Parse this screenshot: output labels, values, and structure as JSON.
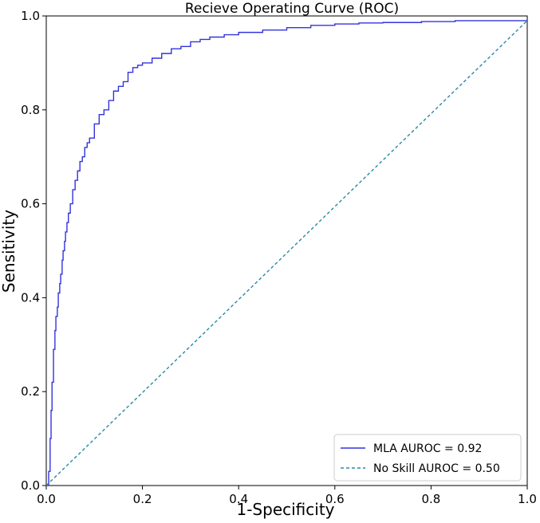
{
  "chart_data": {
    "type": "line",
    "title": "Recieve Operating Curve (ROC)",
    "xlabel": "1-Specificity",
    "ylabel": "Sensitivity",
    "xlim": [
      0.0,
      1.0
    ],
    "ylim": [
      0.0,
      1.0
    ],
    "xticks": [
      "0.0",
      "0.2",
      "0.4",
      "0.6",
      "0.8",
      "1.0"
    ],
    "yticks": [
      "0.0",
      "0.2",
      "0.4",
      "0.6",
      "0.8",
      "1.0"
    ],
    "grid": false,
    "legend_position": "lower-right",
    "series": [
      {
        "name": "MLA AUROC = 0.92",
        "color": "#3333dd",
        "style": "solid",
        "x": [
          0.0,
          0.005,
          0.008,
          0.01,
          0.012,
          0.015,
          0.018,
          0.02,
          0.023,
          0.025,
          0.028,
          0.03,
          0.033,
          0.035,
          0.038,
          0.04,
          0.043,
          0.046,
          0.05,
          0.055,
          0.06,
          0.065,
          0.07,
          0.075,
          0.08,
          0.085,
          0.09,
          0.1,
          0.11,
          0.12,
          0.13,
          0.14,
          0.15,
          0.16,
          0.17,
          0.18,
          0.19,
          0.2,
          0.22,
          0.24,
          0.26,
          0.28,
          0.3,
          0.32,
          0.34,
          0.37,
          0.4,
          0.45,
          0.5,
          0.55,
          0.6,
          0.65,
          0.7,
          0.78,
          0.85,
          0.9,
          1.0
        ],
        "y": [
          0.0,
          0.03,
          0.1,
          0.16,
          0.22,
          0.29,
          0.33,
          0.36,
          0.38,
          0.41,
          0.43,
          0.45,
          0.48,
          0.5,
          0.52,
          0.54,
          0.56,
          0.58,
          0.6,
          0.63,
          0.65,
          0.67,
          0.69,
          0.7,
          0.72,
          0.73,
          0.74,
          0.77,
          0.79,
          0.8,
          0.82,
          0.84,
          0.85,
          0.86,
          0.88,
          0.89,
          0.895,
          0.9,
          0.91,
          0.92,
          0.93,
          0.935,
          0.945,
          0.95,
          0.955,
          0.96,
          0.965,
          0.97,
          0.975,
          0.98,
          0.983,
          0.985,
          0.986,
          0.988,
          0.99,
          0.99,
          0.99
        ]
      },
      {
        "name": "No Skill AUROC = 0.50",
        "color": "#2a8aa3",
        "style": "dashed",
        "x": [
          0.0,
          1.0
        ],
        "y": [
          0.0,
          0.99
        ]
      }
    ]
  }
}
